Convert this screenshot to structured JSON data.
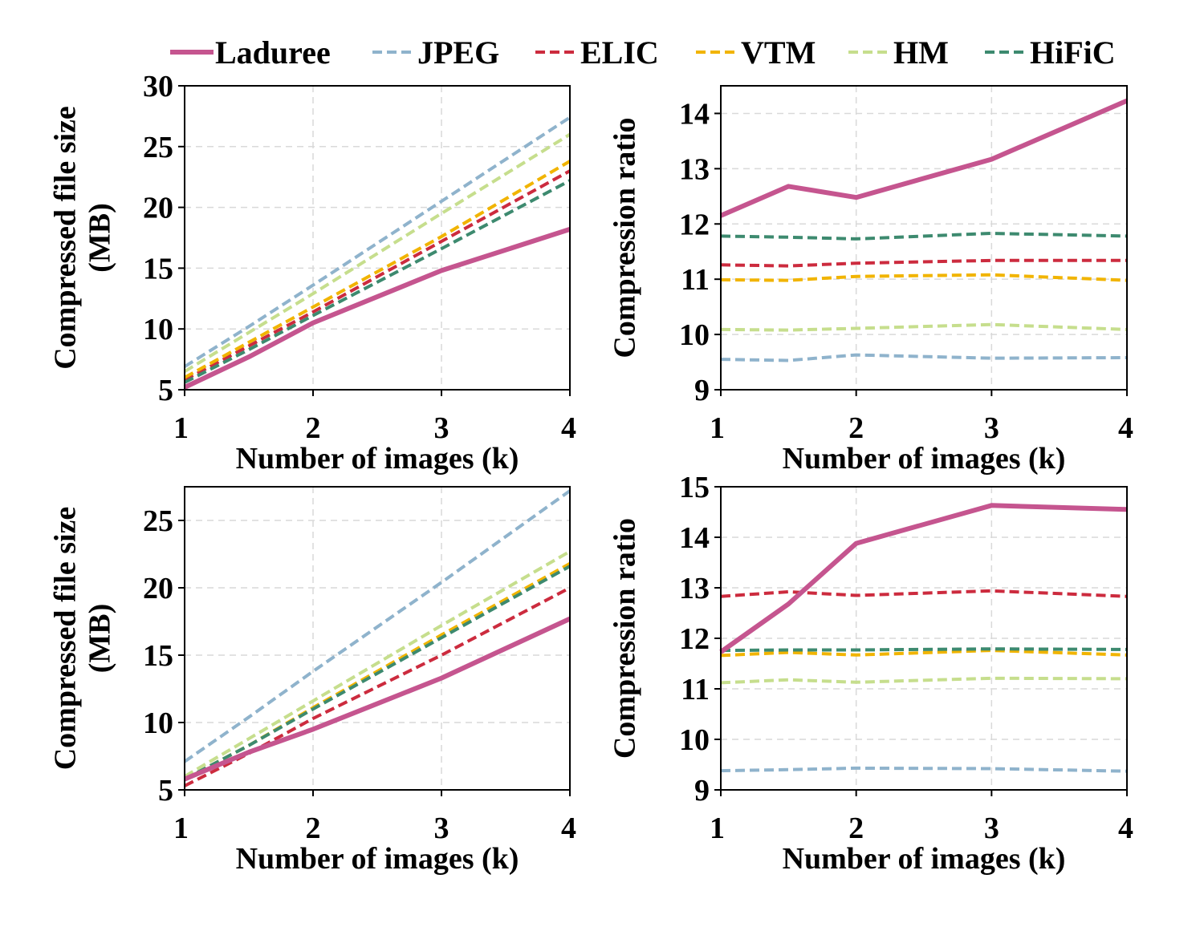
{
  "legend": {
    "items": [
      {
        "name": "Laduree",
        "color": "#c5558f",
        "dashed": false
      },
      {
        "name": "JPEG",
        "color": "#8fb3cc",
        "dashed": true
      },
      {
        "name": "ELIC",
        "color": "#cc2b3e",
        "dashed": true
      },
      {
        "name": "VTM",
        "color": "#f1b400",
        "dashed": true
      },
      {
        "name": "HM",
        "color": "#c6de8d",
        "dashed": true
      },
      {
        "name": "HiFiC",
        "color": "#3d8a6f",
        "dashed": true
      }
    ]
  },
  "chart_data": [
    {
      "type": "line",
      "xlabel": "Number of images (k)",
      "ylabel": [
        "Compressed file size",
        "(MB)"
      ],
      "xlim": [
        1,
        4
      ],
      "ylim": [
        5,
        30
      ],
      "xticks": [
        1,
        2,
        3,
        4
      ],
      "yticks": [
        5,
        10,
        15,
        20,
        25,
        30
      ],
      "grid": true,
      "x": [
        1,
        1.5,
        2,
        3,
        4
      ],
      "series": [
        {
          "name": "Laduree",
          "values": [
            5.2,
            7.7,
            10.5,
            14.8,
            18.2
          ]
        },
        {
          "name": "JPEG",
          "values": [
            6.9,
            10.2,
            13.6,
            20.5,
            27.4
          ]
        },
        {
          "name": "ELIC",
          "values": [
            5.8,
            8.6,
            11.4,
            17.2,
            23.0
          ]
        },
        {
          "name": "VTM",
          "values": [
            6.0,
            8.9,
            11.8,
            17.6,
            23.8
          ]
        },
        {
          "name": "HM",
          "values": [
            6.5,
            9.7,
            12.9,
            19.5,
            26.0
          ]
        },
        {
          "name": "HiFiC",
          "values": [
            5.6,
            8.3,
            11.1,
            16.6,
            22.2
          ]
        }
      ]
    },
    {
      "type": "line",
      "xlabel": "Number of images (k)",
      "ylabel": [
        "Compression ratio"
      ],
      "xlim": [
        1,
        4
      ],
      "ylim": [
        9,
        14.5
      ],
      "xticks": [
        1,
        2,
        3,
        4
      ],
      "yticks": [
        9,
        10,
        11,
        12,
        13,
        14
      ],
      "grid": true,
      "x": [
        1,
        1.5,
        2,
        3,
        4
      ],
      "series": [
        {
          "name": "Laduree",
          "values": [
            12.15,
            12.68,
            12.48,
            13.17,
            14.23
          ]
        },
        {
          "name": "JPEG",
          "values": [
            9.55,
            9.53,
            9.63,
            9.57,
            9.58
          ]
        },
        {
          "name": "ELIC",
          "values": [
            11.26,
            11.24,
            11.29,
            11.34,
            11.34
          ]
        },
        {
          "name": "VTM",
          "values": [
            10.99,
            10.98,
            11.05,
            11.08,
            10.98
          ]
        },
        {
          "name": "HM",
          "values": [
            10.09,
            10.08,
            10.11,
            10.18,
            10.09
          ]
        },
        {
          "name": "HiFiC",
          "values": [
            11.78,
            11.76,
            11.73,
            11.83,
            11.78
          ]
        }
      ]
    },
    {
      "type": "line",
      "xlabel": "Number of images (k)",
      "ylabel": [
        "Compressed file size",
        "(MB)"
      ],
      "xlim": [
        1,
        4
      ],
      "ylim": [
        5,
        27.5
      ],
      "xticks": [
        1,
        2,
        3,
        4
      ],
      "yticks": [
        5,
        10,
        15,
        20,
        25
      ],
      "grid": true,
      "x": [
        1,
        1.5,
        2,
        3,
        4
      ],
      "series": [
        {
          "name": "Laduree",
          "values": [
            5.8,
            7.8,
            9.5,
            13.3,
            17.7
          ]
        },
        {
          "name": "JPEG",
          "values": [
            7.1,
            10.4,
            13.8,
            20.4,
            27.2
          ]
        },
        {
          "name": "ELIC",
          "values": [
            5.3,
            7.7,
            10.3,
            15.0,
            20.0
          ]
        },
        {
          "name": "VTM",
          "values": [
            5.8,
            8.3,
            11.1,
            16.5,
            21.8
          ]
        },
        {
          "name": "HM",
          "values": [
            6.0,
            8.8,
            11.6,
            17.2,
            22.7
          ]
        },
        {
          "name": "HiFiC",
          "values": [
            5.8,
            8.3,
            11.0,
            16.3,
            21.6
          ]
        }
      ]
    },
    {
      "type": "line",
      "xlabel": "Number of images (k)",
      "ylabel": [
        "Compression ratio"
      ],
      "xlim": [
        1,
        4
      ],
      "ylim": [
        9,
        15
      ],
      "xticks": [
        1,
        2,
        3,
        4
      ],
      "yticks": [
        9,
        10,
        11,
        12,
        13,
        14,
        15
      ],
      "grid": true,
      "x": [
        1,
        1.5,
        2,
        3,
        4
      ],
      "series": [
        {
          "name": "Laduree",
          "values": [
            11.73,
            12.68,
            13.88,
            14.63,
            14.55
          ]
        },
        {
          "name": "JPEG",
          "values": [
            9.38,
            9.4,
            9.43,
            9.42,
            9.37
          ]
        },
        {
          "name": "ELIC",
          "values": [
            12.83,
            12.92,
            12.85,
            12.94,
            12.83
          ]
        },
        {
          "name": "VTM",
          "values": [
            11.66,
            11.72,
            11.67,
            11.76,
            11.67
          ]
        },
        {
          "name": "HM",
          "values": [
            11.12,
            11.18,
            11.13,
            11.21,
            11.2
          ]
        },
        {
          "name": "HiFiC",
          "values": [
            11.76,
            11.77,
            11.77,
            11.79,
            11.78
          ]
        }
      ]
    }
  ]
}
